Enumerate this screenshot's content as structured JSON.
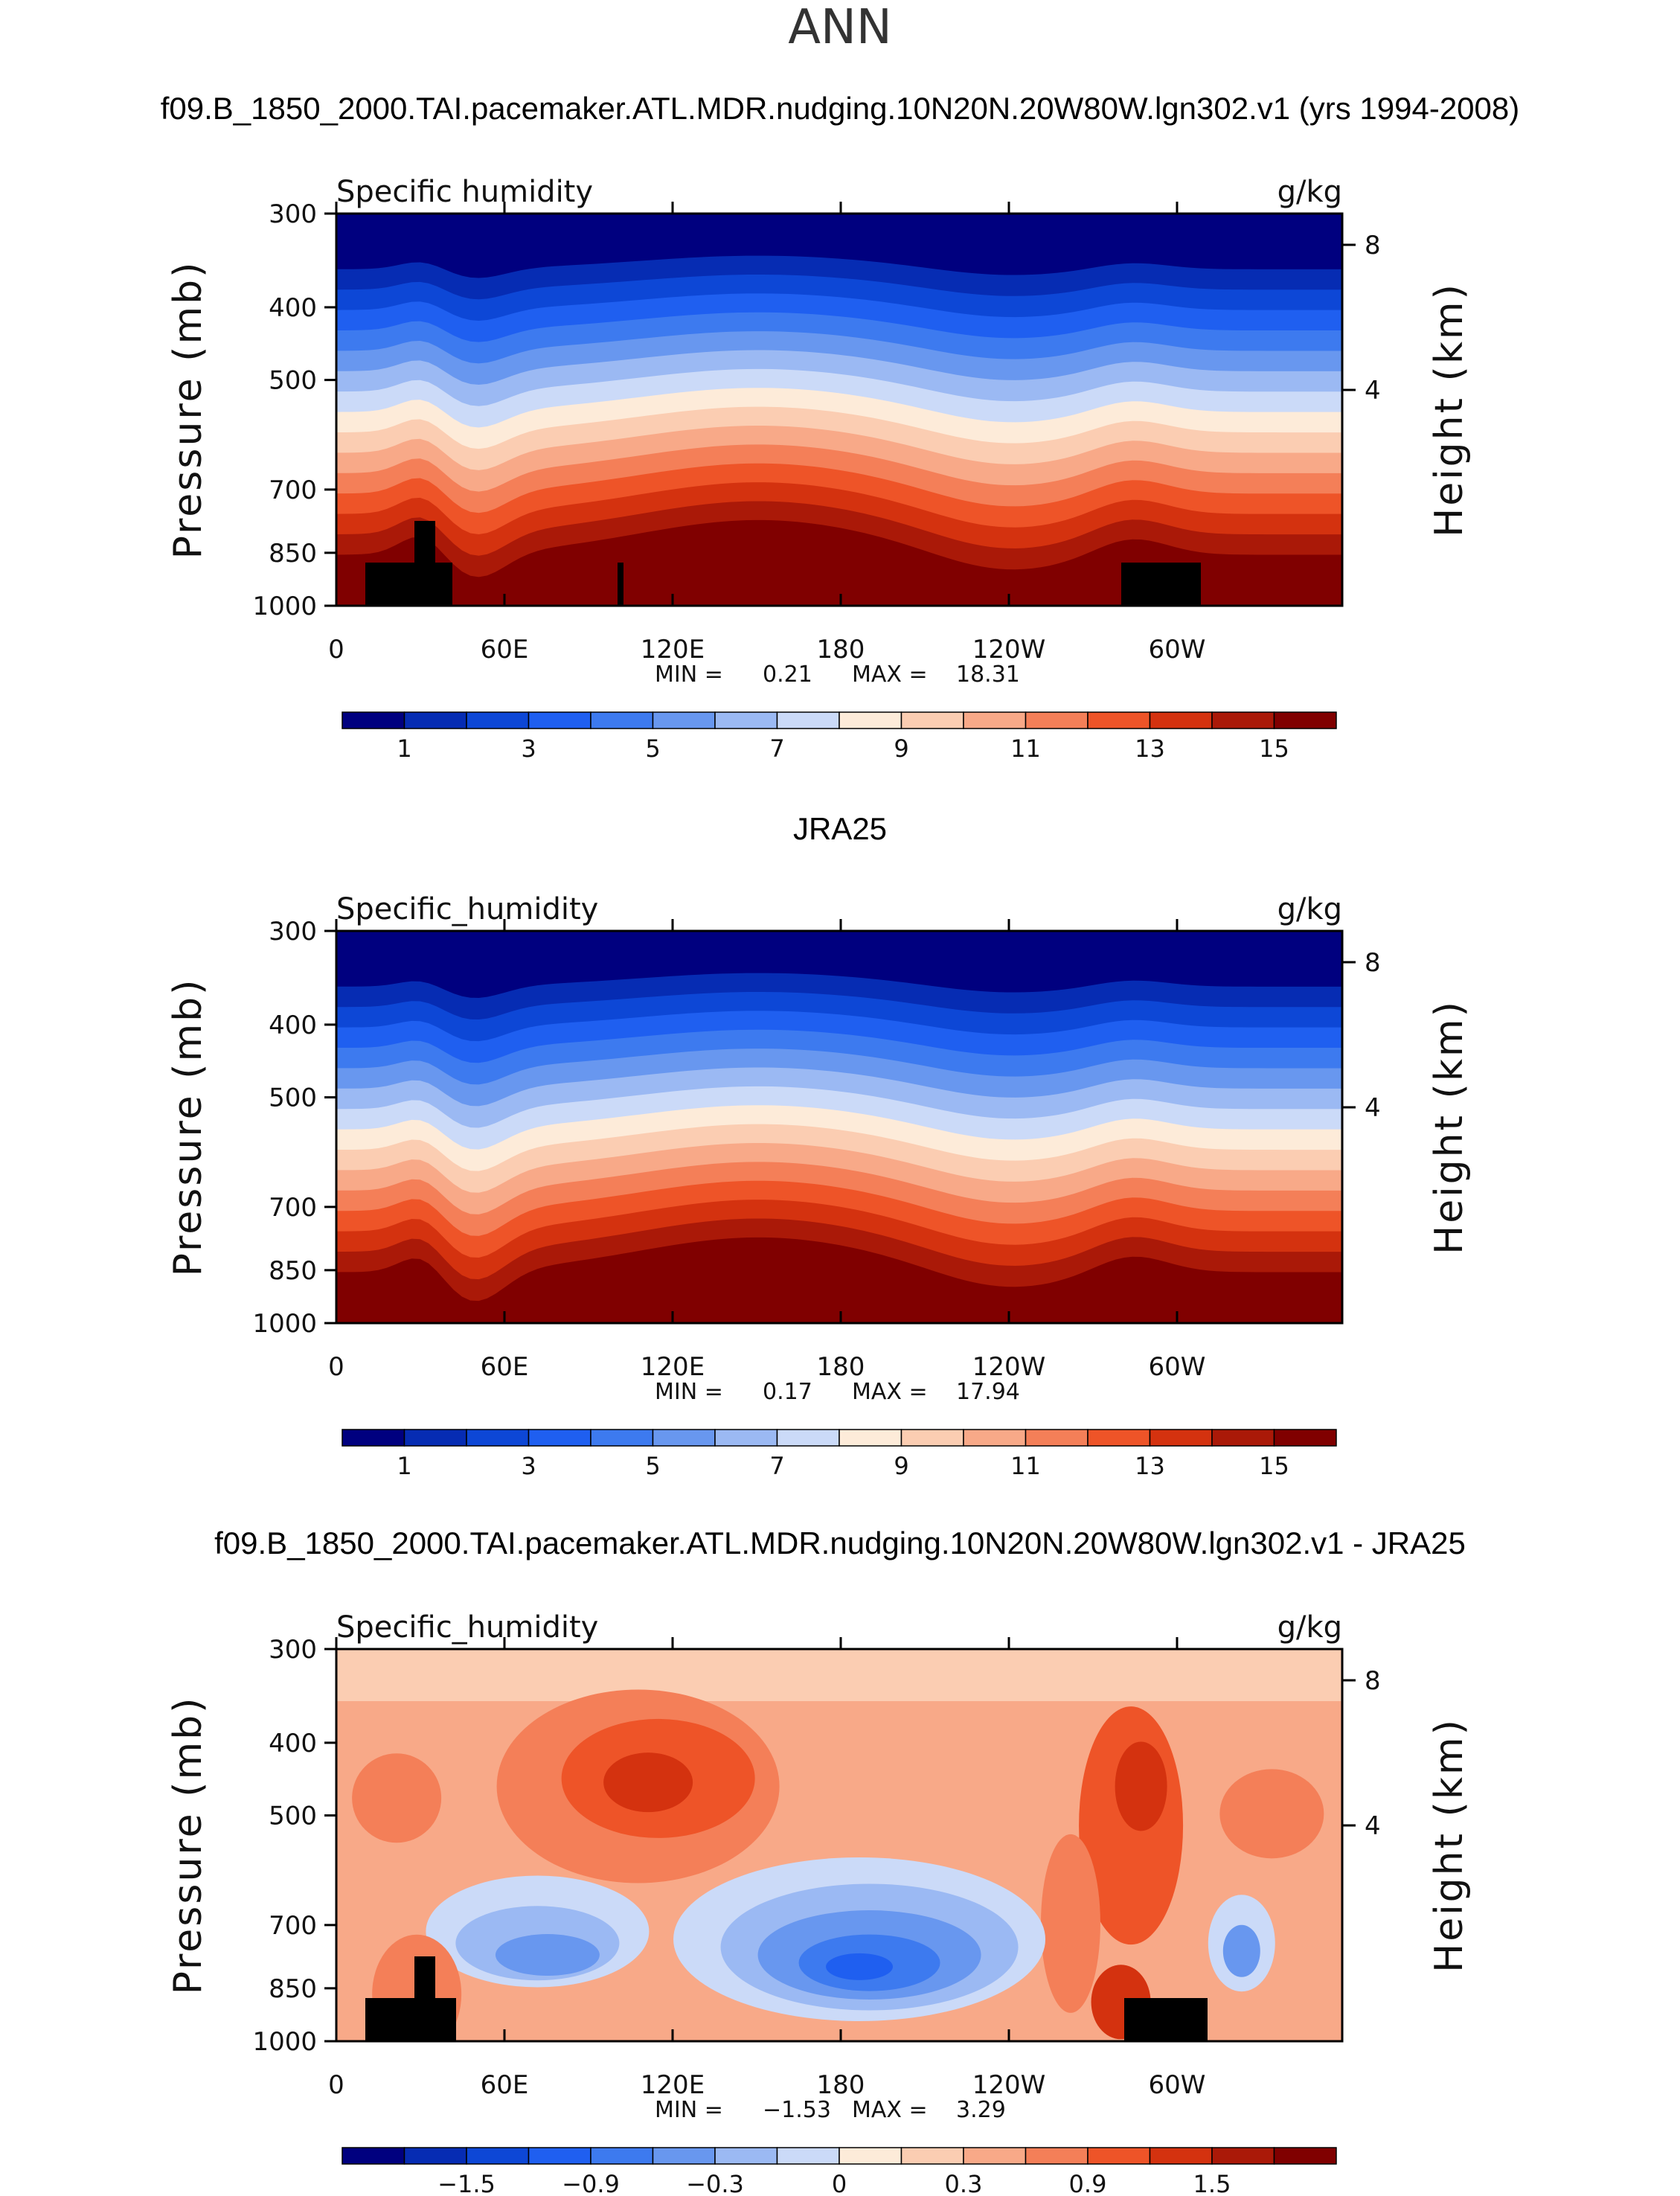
{
  "figure_title": "ANN",
  "colors": {
    "seq": [
      "#00007f",
      "#062cb3",
      "#0d47d6",
      "#1f5ff0",
      "#3d7aef",
      "#6897ef",
      "#9bb9f3",
      "#cbdaf8",
      "#fdebd9",
      "#fbcdb2",
      "#f8a988",
      "#f47f58",
      "#ee5428",
      "#d4320f",
      "#aa1908",
      "#800000"
    ],
    "diff": [
      "#00007f",
      "#062cb3",
      "#0d47d6",
      "#1f5ff0",
      "#3d7aef",
      "#6897ef",
      "#9bb9f3",
      "#cbdaf8",
      "#fdebd9",
      "#fbcdb2",
      "#f8a988",
      "#f47f58",
      "#ee5428",
      "#d4320f",
      "#aa1908",
      "#800000"
    ],
    "land": "#000000"
  },
  "chart_data": [
    {
      "type": "heatmap",
      "panel": "top",
      "title": "f09.B_1850_2000.TAI.pacemaker.ATL.MDR.nudging.10N20N.20W80W.lgn302.v1 (yrs 1994-2008)",
      "variable": "Specific humidity",
      "units": "g/kg",
      "ylabel": "Pressure (mb)",
      "y2label": "Height (km)",
      "x_ticks": [
        "0",
        "60E",
        "120E",
        "180",
        "120W",
        "60W"
      ],
      "y_ticks": [
        "300",
        "400",
        "500",
        "700",
        "850",
        "1000"
      ],
      "y2_ticks": [
        "8",
        "4"
      ],
      "min_label": "MIN =",
      "min_value": "0.21",
      "max_label": "MAX =",
      "max_value": "18.31",
      "colorbar_labels": [
        "1",
        "3",
        "5",
        "7",
        "9",
        "11",
        "13",
        "15"
      ]
    },
    {
      "type": "heatmap",
      "panel": "middle",
      "title": "JRA25",
      "variable": "Specific_humidity",
      "units": "g/kg",
      "ylabel": "Pressure (mb)",
      "y2label": "Height (km)",
      "x_ticks": [
        "0",
        "60E",
        "120E",
        "180",
        "120W",
        "60W"
      ],
      "y_ticks": [
        "300",
        "400",
        "500",
        "700",
        "850",
        "1000"
      ],
      "y2_ticks": [
        "8",
        "4"
      ],
      "min_label": "MIN =",
      "min_value": "0.17",
      "max_label": "MAX =",
      "max_value": "17.94",
      "colorbar_labels": [
        "1",
        "3",
        "5",
        "7",
        "9",
        "11",
        "13",
        "15"
      ]
    },
    {
      "type": "heatmap",
      "panel": "bottom",
      "title": "f09.B_1850_2000.TAI.pacemaker.ATL.MDR.nudging.10N20N.20W80W.lgn302.v1 - JRA25",
      "variable": "Specific_humidity",
      "units": "g/kg",
      "ylabel": "Pressure (mb)",
      "y2label": "Height (km)",
      "x_ticks": [
        "0",
        "60E",
        "120E",
        "180",
        "120W",
        "60W"
      ],
      "y_ticks": [
        "300",
        "400",
        "500",
        "700",
        "850",
        "1000"
      ],
      "y2_ticks": [
        "8",
        "4"
      ],
      "min_label": "MIN =",
      "min_value": "−1.53",
      "max_label": "MAX =",
      "max_value": "3.29",
      "colorbar_labels": [
        "−1.5",
        "−0.9",
        "−0.3",
        "0",
        "0.3",
        "0.9",
        "1.5"
      ]
    }
  ]
}
